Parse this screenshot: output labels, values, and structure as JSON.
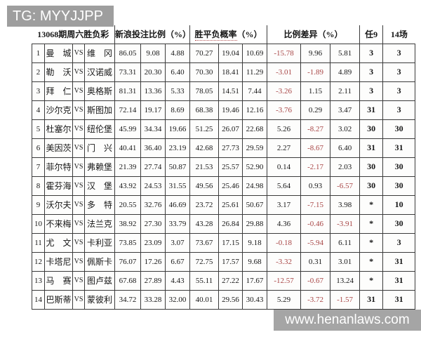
{
  "header": {
    "tg_label": "TG: MYYJJPP"
  },
  "footer": {
    "watermark": "www.henanlaws.com"
  },
  "colors": {
    "negative": "#a84545",
    "badge_gray": "#9e9e9e",
    "watermark_gray": "#a5a5a5",
    "grid_line": "#3b3b3b"
  },
  "table": {
    "title": "13068期周六胜负彩",
    "group_bet_label": "新浪投注比例（%）",
    "group_prob_label": "胜平负概率",
    "group_prob_suffix": "（%）",
    "group_diff_label": "比例差异（%）",
    "col_ren9_label": "任9",
    "col_14_label": "14场",
    "vs_label": "VS",
    "rows": [
      {
        "no": "1",
        "home": "曼　城",
        "away": "维　冈",
        "bet": [
          "86.05",
          "9.08",
          "4.88"
        ],
        "prob": [
          "70.27",
          "19.04",
          "10.69"
        ],
        "diff": [
          "-15.78",
          "9.96",
          "5.81"
        ],
        "ren9": "3",
        "c14": "3"
      },
      {
        "no": "2",
        "home": "勒　沃",
        "away": "汉诺威",
        "bet": [
          "73.31",
          "20.30",
          "6.40"
        ],
        "prob": [
          "70.30",
          "18.41",
          "11.29"
        ],
        "diff": [
          "-3.01",
          "-1.89",
          "4.89"
        ],
        "ren9": "3",
        "c14": "3"
      },
      {
        "no": "3",
        "home": "拜　仁",
        "away": "奥格斯",
        "bet": [
          "81.31",
          "13.36",
          "5.33"
        ],
        "prob": [
          "78.05",
          "14.51",
          "7.44"
        ],
        "diff": [
          "-3.26",
          "1.15",
          "2.11"
        ],
        "ren9": "3",
        "c14": "3"
      },
      {
        "no": "4",
        "home": "沙尔克",
        "away": "斯图加",
        "bet": [
          "72.14",
          "19.17",
          "8.69"
        ],
        "prob": [
          "68.38",
          "19.46",
          "12.16"
        ],
        "diff": [
          "-3.76",
          "0.29",
          "3.47"
        ],
        "ren9": "31",
        "c14": "3"
      },
      {
        "no": "5",
        "home": "杜塞尔",
        "away": "纽伦堡",
        "bet": [
          "45.99",
          "34.34",
          "19.66"
        ],
        "prob": [
          "51.25",
          "26.07",
          "22.68"
        ],
        "diff": [
          "5.26",
          "-8.27",
          "3.02"
        ],
        "ren9": "30",
        "c14": "30"
      },
      {
        "no": "6",
        "home": "美因茨",
        "away": "门　兴",
        "bet": [
          "40.41",
          "36.40",
          "23.19"
        ],
        "prob": [
          "42.68",
          "27.73",
          "29.59"
        ],
        "diff": [
          "2.27",
          "-8.67",
          "6.40"
        ],
        "ren9": "31",
        "c14": "31"
      },
      {
        "no": "7",
        "home": "菲尔特",
        "away": "弗赖堡",
        "bet": [
          "21.39",
          "27.74",
          "50.87"
        ],
        "prob": [
          "21.53",
          "25.57",
          "52.90"
        ],
        "diff": [
          "0.14",
          "-2.17",
          "2.03"
        ],
        "ren9": "30",
        "c14": "30"
      },
      {
        "no": "8",
        "home": "霍芬海",
        "away": "汉　堡",
        "bet": [
          "43.92",
          "24.53",
          "31.55"
        ],
        "prob": [
          "49.56",
          "25.46",
          "24.98"
        ],
        "diff": [
          "5.64",
          "0.93",
          "-6.57"
        ],
        "ren9": "30",
        "c14": "30"
      },
      {
        "no": "9",
        "home": "沃尔夫",
        "away": "多　特",
        "bet": [
          "20.55",
          "32.76",
          "46.69"
        ],
        "prob": [
          "23.72",
          "25.61",
          "50.67"
        ],
        "diff": [
          "3.17",
          "-7.15",
          "3.98"
        ],
        "ren9": "*",
        "c14": "10"
      },
      {
        "no": "10",
        "home": "不来梅",
        "away": "法兰克",
        "bet": [
          "38.92",
          "27.30",
          "33.79"
        ],
        "prob": [
          "43.28",
          "26.84",
          "29.88"
        ],
        "diff": [
          "4.36",
          "-0.46",
          "-3.91"
        ],
        "ren9": "*",
        "c14": "30"
      },
      {
        "no": "11",
        "home": "尤　文",
        "away": "卡利亚",
        "bet": [
          "73.85",
          "23.09",
          "3.07"
        ],
        "prob": [
          "73.67",
          "17.15",
          "9.18"
        ],
        "diff": [
          "-0.18",
          "-5.94",
          "6.11"
        ],
        "ren9": "*",
        "c14": "3"
      },
      {
        "no": "12",
        "home": "卡塔尼",
        "away": "佩斯卡",
        "bet": [
          "76.07",
          "17.26",
          "6.67"
        ],
        "prob": [
          "72.75",
          "17.57",
          "9.68"
        ],
        "diff": [
          "-3.32",
          "0.31",
          "3.01"
        ],
        "ren9": "*",
        "c14": "31"
      },
      {
        "no": "13",
        "home": "马　赛",
        "away": "图卢兹",
        "bet": [
          "67.68",
          "27.89",
          "4.43"
        ],
        "prob": [
          "55.11",
          "27.22",
          "17.67"
        ],
        "diff": [
          "-12.57",
          "-0.67",
          "13.24"
        ],
        "ren9": "*",
        "c14": "31"
      },
      {
        "no": "14",
        "home": "巴斯蒂",
        "away": "蒙彼利",
        "bet": [
          "34.72",
          "33.28",
          "32.00"
        ],
        "prob": [
          "40.01",
          "29.56",
          "30.43"
        ],
        "diff": [
          "5.29",
          "-3.72",
          "-1.57"
        ],
        "ren9": "31",
        "c14": "31"
      }
    ]
  }
}
